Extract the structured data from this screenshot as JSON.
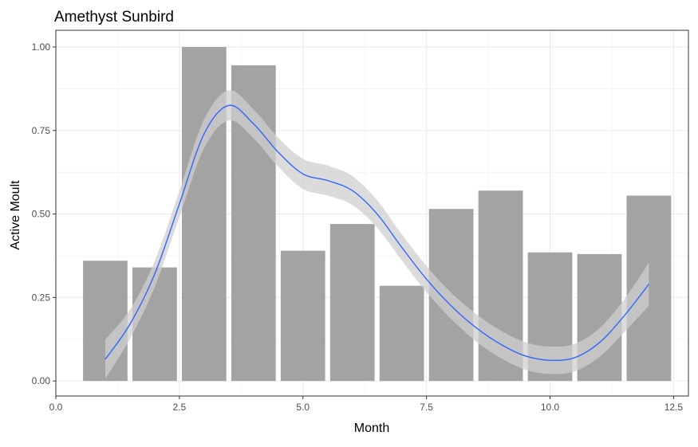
{
  "chart_data": {
    "type": "bar",
    "title": "Amethyst Sunbird",
    "xlabel": "Month",
    "ylabel": "Active Moult",
    "xlim": [
      0,
      12.8
    ],
    "ylim": [
      -0.045,
      1.05
    ],
    "grid": true,
    "bar_color": "#a3a3a3",
    "smooth_color": "#3366ff",
    "ribbon_color": "#cfcfcf",
    "x_ticks": [
      0,
      2.5,
      5,
      7.5,
      10,
      12.5
    ],
    "x_tick_labels": [
      "0.0",
      "2.5",
      "5.0",
      "7.5",
      "10.0",
      "12.5"
    ],
    "y_ticks": [
      0,
      0.25,
      0.5,
      0.75,
      1
    ],
    "y_tick_labels": [
      "0.00",
      "0.25",
      "0.50",
      "0.75",
      "1.00"
    ],
    "categories": [
      1,
      2,
      3,
      4,
      5,
      6,
      7,
      8,
      9,
      10,
      11,
      12
    ],
    "values": [
      0.36,
      0.34,
      1.0,
      0.945,
      0.39,
      0.47,
      0.285,
      0.515,
      0.57,
      0.385,
      0.38,
      0.555
    ],
    "smooth": {
      "x": [
        1.0,
        1.5,
        2.0,
        2.5,
        3.0,
        3.5,
        4.0,
        4.5,
        5.0,
        5.5,
        6.0,
        6.5,
        7.0,
        7.5,
        8.0,
        8.5,
        9.0,
        9.5,
        10.0,
        10.5,
        11.0,
        11.5,
        12.0
      ],
      "y": [
        0.065,
        0.17,
        0.32,
        0.53,
        0.74,
        0.825,
        0.77,
        0.685,
        0.62,
        0.6,
        0.57,
        0.5,
        0.4,
        0.305,
        0.225,
        0.16,
        0.11,
        0.075,
        0.062,
        0.07,
        0.115,
        0.195,
        0.29
      ],
      "se": [
        0.03,
        0.022,
        0.02,
        0.02,
        0.022,
        0.023,
        0.022,
        0.022,
        0.023,
        0.023,
        0.022,
        0.021,
        0.02,
        0.02,
        0.02,
        0.021,
        0.021,
        0.021,
        0.021,
        0.021,
        0.022,
        0.025,
        0.033
      ]
    }
  }
}
